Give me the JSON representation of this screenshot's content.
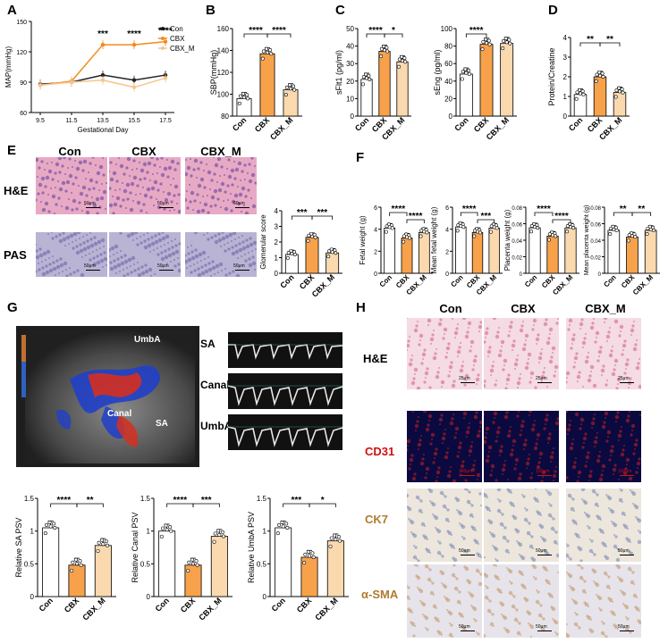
{
  "panels": {
    "A": "A",
    "B": "B",
    "C": "C",
    "D": "D",
    "E": "E",
    "F": "F",
    "G": "G",
    "H": "H"
  },
  "colors": {
    "con": "#222222",
    "cbx": "#f28a1e",
    "cbx_m": "#f7c68c",
    "cbx_bar": "#f7a24b",
    "cbx_m_bar": "#fbd9ae",
    "he_pink": "#e7a9c4",
    "pas_purple": "#b9b3d4",
    "ihc_bg": "#ece6dc",
    "cd31_bg": "#0a0a40"
  },
  "chartA": {
    "legend": [
      "Con",
      "CBX",
      "CBX_M"
    ],
    "ylabel": "MAP(mmHg)",
    "xlabel": "Gestational Day",
    "sig": [
      "***",
      "****",
      "****"
    ]
  },
  "chart_data": [
    {
      "panel": "A",
      "type": "line",
      "x": [
        9.5,
        11.5,
        13.5,
        15.5,
        17.5
      ],
      "xticks": [
        "9.5",
        "11.5",
        "13.5",
        "15.5",
        "17.5"
      ],
      "xlabel": "Gestational Day",
      "ylabel": "MAP(mmHg)",
      "ylim": [
        60,
        150
      ],
      "yticks": [
        60,
        90,
        120,
        150
      ],
      "series": [
        {
          "name": "Con",
          "values": [
            88,
            90,
            97,
            92,
            97
          ]
        },
        {
          "name": "CBX",
          "values": [
            87,
            91,
            127,
            127,
            130
          ]
        },
        {
          "name": "CBX_M",
          "values": [
            87,
            90,
            92,
            85,
            94
          ]
        }
      ],
      "annotations": [
        "***",
        "****",
        "****"
      ]
    },
    {
      "panel": "B",
      "type": "bar",
      "categories": [
        "Con",
        "CBX",
        "CBX_M"
      ],
      "values": [
        96,
        137,
        104
      ],
      "ylabel": "SBP(mmHg)",
      "ylim": [
        80,
        160
      ],
      "yticks": [
        80,
        100,
        120,
        140,
        160
      ],
      "sig": [
        "****",
        "****"
      ]
    },
    {
      "panel": "C1",
      "type": "bar",
      "categories": [
        "Con",
        "CBX",
        "CBX_M"
      ],
      "values": [
        21,
        37,
        31
      ],
      "ylabel": "sFlt1 (pg/ml)",
      "ylim": [
        0,
        50
      ],
      "yticks": [
        0,
        10,
        20,
        30,
        40,
        50
      ],
      "sig": [
        "****",
        "*"
      ]
    },
    {
      "panel": "C2",
      "type": "bar",
      "categories": [
        "Con",
        "CBX",
        "CBX_M"
      ],
      "values": [
        48,
        82,
        83
      ],
      "ylabel": "sEng (pg/ml)",
      "ylim": [
        0,
        100
      ],
      "yticks": [
        0,
        20,
        40,
        60,
        80,
        100
      ],
      "sig": [
        "****"
      ]
    },
    {
      "panel": "D",
      "type": "bar",
      "categories": [
        "Con",
        "CBX",
        "CBX_M"
      ],
      "values": [
        1.1,
        2.0,
        1.2
      ],
      "ylabel": "Protein/Creatine",
      "ylim": [
        0,
        4
      ],
      "yticks": [
        0,
        1,
        2,
        3,
        4
      ],
      "sig": [
        "**",
        "**"
      ]
    },
    {
      "panel": "E",
      "type": "bar",
      "categories": [
        "Con",
        "CBX",
        "CBX_M"
      ],
      "values": [
        1.2,
        2.3,
        1.3
      ],
      "ylabel": "Glomerular score",
      "ylim": [
        0,
        4
      ],
      "yticks": [
        0,
        1,
        2,
        3,
        4
      ],
      "sig": [
        "***",
        "***"
      ]
    },
    {
      "panel": "F1",
      "type": "bar",
      "categories": [
        "Con",
        "CBX",
        "CBX_M"
      ],
      "values": [
        4.1,
        3.2,
        3.7
      ],
      "ylabel": "Fetal weight (g)",
      "ylim": [
        0,
        6
      ],
      "yticks": [
        0,
        2,
        4,
        6
      ],
      "sig": [
        "****",
        "****"
      ]
    },
    {
      "panel": "F2",
      "type": "bar",
      "categories": [
        "Con",
        "CBX",
        "CBX_M"
      ],
      "values": [
        4.2,
        3.7,
        4.1
      ],
      "ylabel": "Mean fetal weight (g)",
      "ylim": [
        0,
        6
      ],
      "yticks": [
        0,
        2,
        4,
        6
      ],
      "sig": [
        "****",
        "***"
      ]
    },
    {
      "panel": "F3",
      "type": "bar",
      "categories": [
        "Con",
        "CBX",
        "CBX_M"
      ],
      "values": [
        0.055,
        0.045,
        0.055
      ],
      "ylabel": "Placenta weight (g)",
      "ylim": [
        0,
        0.08
      ],
      "yticks": [
        0,
        0.02,
        0.04,
        0.06,
        0.08
      ],
      "sig": [
        "****",
        "****"
      ]
    },
    {
      "panel": "F4",
      "type": "bar",
      "categories": [
        "Con",
        "CBX",
        "CBX_M"
      ],
      "values": [
        0.052,
        0.044,
        0.052
      ],
      "ylabel": "Mean placenta weight (g)",
      "ylim": [
        0,
        0.08
      ],
      "yticks": [
        0,
        0.02,
        0.04,
        0.06,
        0.08
      ],
      "sig": [
        "**",
        "**"
      ]
    },
    {
      "panel": "G1",
      "type": "bar",
      "categories": [
        "Con",
        "CBX",
        "CBX_M"
      ],
      "values": [
        1.05,
        0.48,
        0.78
      ],
      "ylabel": "Relative SA PSV",
      "ylim": [
        0,
        1.5
      ],
      "yticks": [
        0.0,
        0.5,
        1.0,
        1.5
      ],
      "sig": [
        "****",
        "**"
      ]
    },
    {
      "panel": "G2",
      "type": "bar",
      "categories": [
        "Con",
        "CBX",
        "CBX_M"
      ],
      "values": [
        1.0,
        0.48,
        0.92
      ],
      "ylabel": "Relative Canal PSV",
      "ylim": [
        0,
        1.5
      ],
      "yticks": [
        0.0,
        0.5,
        1.0,
        1.5
      ],
      "sig": [
        "****",
        "***"
      ]
    },
    {
      "panel": "G3",
      "type": "bar",
      "categories": [
        "Con",
        "CBX",
        "CBX_M"
      ],
      "values": [
        1.05,
        0.6,
        0.85
      ],
      "ylabel": "Relative UmbA  PSV",
      "ylim": [
        0,
        1.5
      ],
      "yticks": [
        0.0,
        0.5,
        1.0,
        1.5
      ],
      "sig": [
        "***",
        "*"
      ]
    }
  ],
  "histE": {
    "cols": [
      "Con",
      "CBX",
      "CBX_M"
    ],
    "rows": [
      "H&E",
      "PAS"
    ],
    "scale": "50μm"
  },
  "usG": {
    "labels": [
      "UmbA",
      "Canal",
      "SA"
    ],
    "traces": [
      "SA",
      "Canal",
      "UmbA"
    ]
  },
  "histH": {
    "cols": [
      "Con",
      "CBX",
      "CBX_M"
    ],
    "rows": [
      "H&E",
      "CD31",
      "CK7",
      "α-SMA"
    ],
    "scales": [
      "25μm",
      "100μm",
      "50μm",
      "50μm"
    ]
  }
}
